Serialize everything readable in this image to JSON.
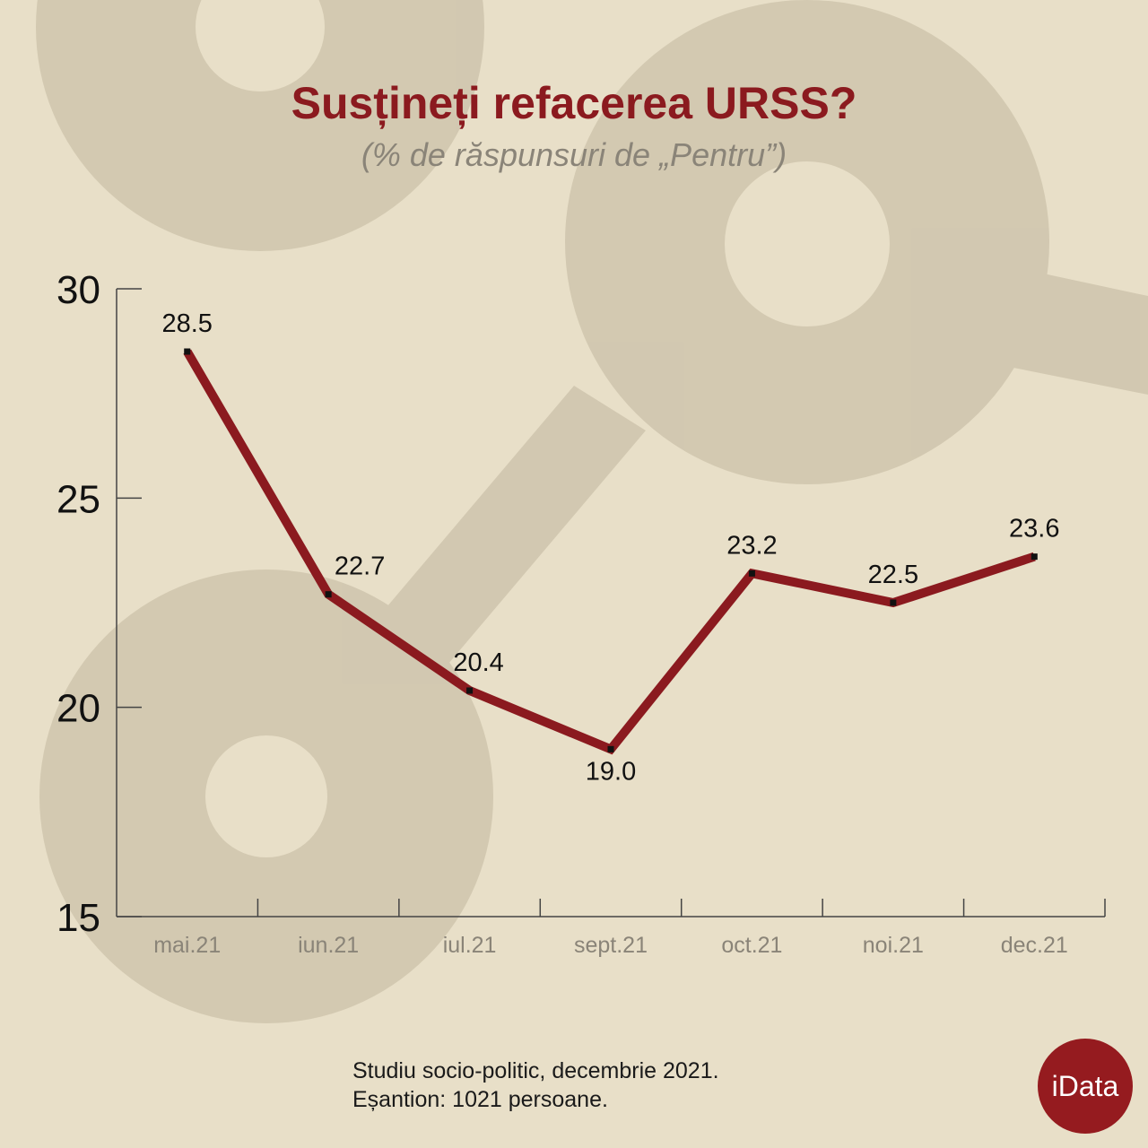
{
  "chart_data": {
    "type": "line",
    "title": "Susținеți refacerea URSS?",
    "subtitle": "(% de răspunsuri de „Pentru”)",
    "categories": [
      "mai.21",
      "iun.21",
      "iul.21",
      "sept.21",
      "oct.21",
      "noi.21",
      "dec.21"
    ],
    "values": [
      28.5,
      22.7,
      20.4,
      19.0,
      23.2,
      22.5,
      23.6
    ],
    "value_labels": [
      "28.5",
      "22.7",
      "20.4",
      "19.0",
      "23.2",
      "22.5",
      "23.6"
    ],
    "yticks": [
      "15",
      "20",
      "25",
      "30"
    ],
    "ylim": [
      15,
      30
    ],
    "xlabel": "",
    "ylabel": "",
    "grid": false,
    "line_color": "#8b1a1f"
  },
  "footer": {
    "line1": "Studiu socio-politic, decembrie 2021.",
    "line2": "Eșantion: 1021 persoane."
  },
  "logo": "iData"
}
